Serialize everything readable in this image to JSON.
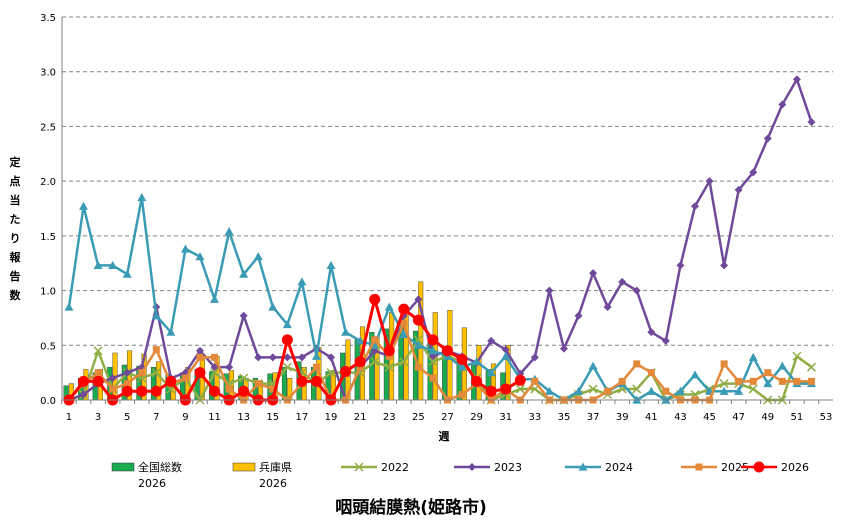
{
  "chart_data": {
    "type": "bar+line",
    "title": "咽頭結膜熱(姫路市)",
    "xlabel": "週",
    "ylabel": "定点当たり報告数",
    "xlim": [
      1,
      53
    ],
    "ylim": [
      0,
      3.5
    ],
    "yticks": [
      "0.0",
      "0.5",
      "1.0",
      "1.5",
      "2.0",
      "2.5",
      "3.0",
      "3.5"
    ],
    "xticks": [
      "1",
      "3",
      "5",
      "7",
      "9",
      "11",
      "13",
      "15",
      "17",
      "19",
      "21",
      "23",
      "25",
      "27",
      "29",
      "31",
      "33",
      "35",
      "37",
      "39",
      "41",
      "43",
      "45",
      "47",
      "49",
      "51",
      "53"
    ],
    "grid": "horizontal dashed",
    "legend_position": "bottom",
    "colors": {
      "national_2026": "#1aab4e",
      "hyogo_2026": "#ffc000",
      "s2022": "#8fae45",
      "s2023": "#6f4a9a",
      "s2024": "#3a9bb5",
      "s2025": "#e4883a",
      "s2026": "#ff0000"
    },
    "bars": [
      {
        "name": "全国総数\n2026",
        "key": "national_2026",
        "values": [
          0.13,
          0.2,
          0.25,
          0.3,
          0.32,
          0.31,
          0.3,
          0.24,
          0.25,
          0.28,
          0.26,
          0.24,
          0.22,
          0.2,
          0.24,
          0.3,
          0.35,
          0.3,
          0.26,
          0.43,
          0.55,
          0.62,
          0.65,
          0.72,
          0.63,
          0.57,
          0.47,
          0.38,
          0.32,
          0.28,
          0.25
        ]
      },
      {
        "name": "兵庫県\n2026",
        "key": "hyogo_2026",
        "values": [
          0.15,
          0.28,
          0.28,
          0.43,
          0.45,
          0.42,
          0.35,
          0.2,
          0.3,
          0.42,
          0.4,
          0.27,
          0.2,
          0.17,
          0.25,
          0.2,
          0.3,
          0.48,
          0.27,
          0.55,
          0.67,
          0.58,
          0.8,
          0.85,
          1.08,
          0.8,
          0.82,
          0.66,
          0.5,
          0.33,
          0.5
        ]
      }
    ],
    "series": [
      {
        "name": "2022",
        "key": "s2022",
        "marker": "x",
        "values": [
          0,
          0.05,
          0.45,
          0.1,
          0.25,
          0.2,
          0.25,
          0.1,
          0.2,
          0.0,
          0.25,
          0.15,
          0.2,
          0.15,
          0.15,
          0.3,
          0.25,
          0.15,
          0.25,
          0.25,
          0.25,
          0.35,
          0.3,
          0.35,
          0.55,
          0.35,
          0.4,
          0.35,
          0.2,
          0.0,
          0.05,
          0.1,
          0.1,
          0.0,
          0.0,
          0.05,
          0.1,
          0.05,
          0.1,
          0.1,
          0.25,
          0.0,
          0.05,
          0.05,
          0.1,
          0.15,
          0.15,
          0.1,
          0.0,
          0.0,
          0.4,
          0.3
        ]
      },
      {
        "name": "2023",
        "key": "s2023",
        "marker": "diamond",
        "values": [
          0,
          0.05,
          0.15,
          0.2,
          0.25,
          0.3,
          0.85,
          0.2,
          0.25,
          0.45,
          0.3,
          0.3,
          0.77,
          0.39,
          0.39,
          0.39,
          0.39,
          0.47,
          0.39,
          0.0,
          0.3,
          0.45,
          0.4,
          0.77,
          0.92,
          0.4,
          0.45,
          0.4,
          0.34,
          0.54,
          0.46,
          0.24,
          0.39,
          1.0,
          0.47,
          0.77,
          1.16,
          0.85,
          1.08,
          1.0,
          0.62,
          0.54,
          1.23,
          1.77,
          2.0,
          1.23,
          1.92,
          2.08,
          2.39,
          2.7,
          2.93,
          2.54
        ]
      },
      {
        "name": "2024",
        "key": "s2024",
        "marker": "triangle",
        "values": [
          0.85,
          1.77,
          1.23,
          1.23,
          1.15,
          1.85,
          0.77,
          0.62,
          1.38,
          1.31,
          0.92,
          1.54,
          1.15,
          1.31,
          0.85,
          0.69,
          1.08,
          0.4,
          1.23,
          0.62,
          0.54,
          0.5,
          0.85,
          0.6,
          0.5,
          0.45,
          0.4,
          0.3,
          0.35,
          0.25,
          0.4,
          0.19,
          0.19,
          0.08,
          0.0,
          0.08,
          0.31,
          0.08,
          0.15,
          0.0,
          0.08,
          0.0,
          0.08,
          0.23,
          0.08,
          0.08,
          0.08,
          0.39,
          0.15,
          0.31,
          0.15,
          0.15
        ]
      },
      {
        "name": "2025",
        "key": "s2025",
        "marker": "square",
        "values": [
          0,
          0.15,
          0.25,
          0.1,
          0.15,
          0.25,
          0.46,
          0.15,
          0.2,
          0.39,
          0.39,
          0.1,
          0.0,
          0.15,
          0.1,
          0.0,
          0.15,
          0.3,
          0.0,
          0.0,
          0.3,
          0.55,
          0.4,
          0.7,
          0.3,
          0.2,
          0.0,
          0.05,
          0.15,
          0.0,
          0.1,
          0.0,
          0.17,
          0.0,
          0.0,
          0.0,
          0.0,
          0.08,
          0.17,
          0.33,
          0.25,
          0.08,
          0.0,
          0.0,
          0.0,
          0.33,
          0.17,
          0.17,
          0.25,
          0.17,
          0.17,
          0.17
        ]
      },
      {
        "name": "2026",
        "key": "s2026",
        "marker": "circle",
        "values": [
          0,
          0.17,
          0.17,
          0.0,
          0.08,
          0.08,
          0.08,
          0.17,
          0.0,
          0.25,
          0.08,
          0.0,
          0.08,
          0.0,
          0.0,
          0.55,
          0.17,
          0.17,
          0.0,
          0.26,
          0.35,
          0.92,
          0.45,
          0.83,
          0.73,
          0.55,
          0.45,
          0.37,
          0.17,
          0.08,
          0.1,
          0.18
        ]
      }
    ]
  }
}
